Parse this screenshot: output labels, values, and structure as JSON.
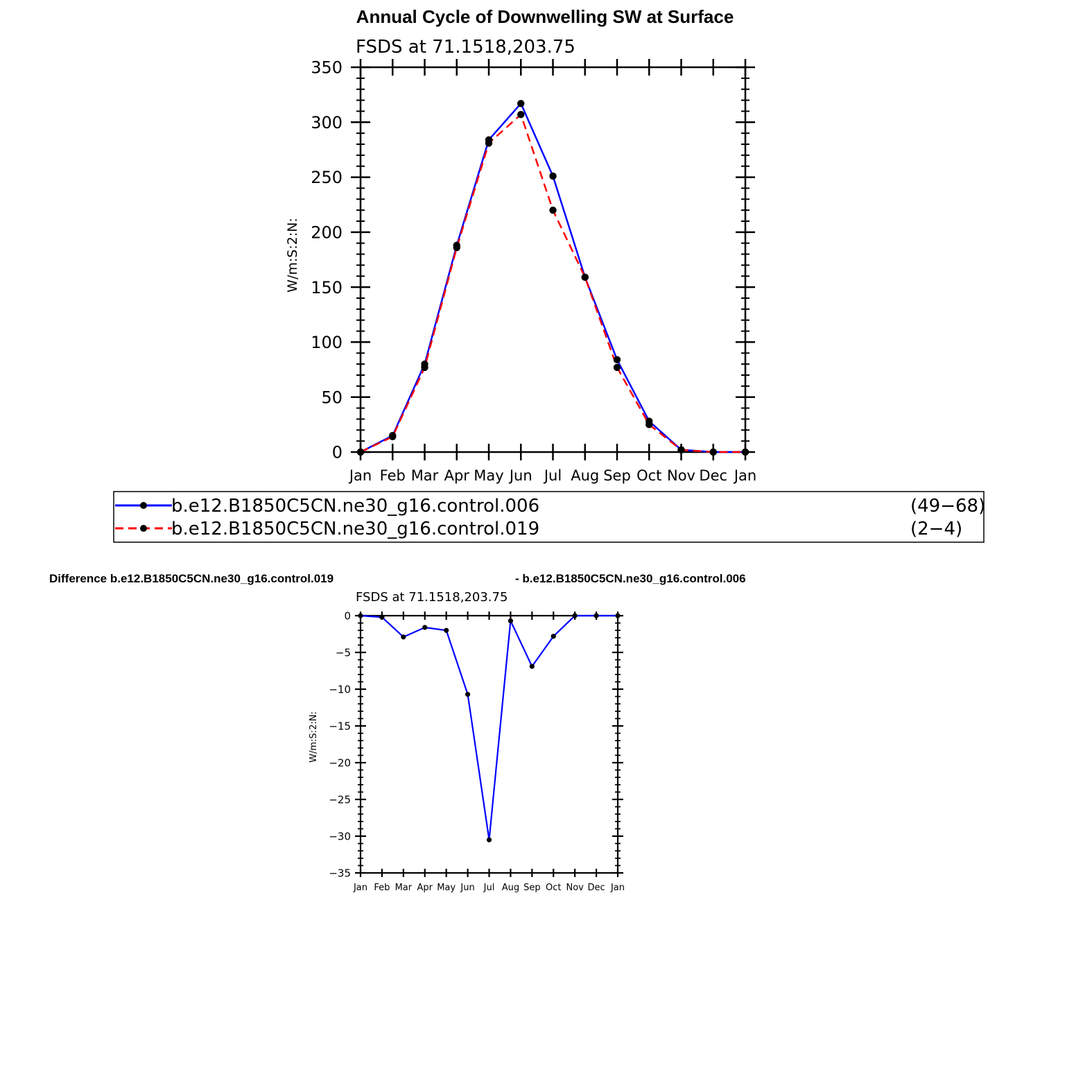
{
  "chart_data": [
    {
      "type": "line",
      "title": "Annual Cycle of Downwelling SW at Surface",
      "subtitle": "FSDS  at  71.1518,203.75",
      "ylabel": "W/m:S:2:N:",
      "xlabel": "",
      "ylim": [
        0,
        350
      ],
      "yticks": [
        0,
        50,
        100,
        150,
        200,
        250,
        300,
        350
      ],
      "categories": [
        "Jan",
        "Feb",
        "Mar",
        "Apr",
        "May",
        "Jun",
        "Jul",
        "Aug",
        "Sep",
        "Oct",
        "Nov",
        "Dec",
        "Jan"
      ],
      "series": [
        {
          "name": "b.e12.B1850C5CN.ne30_g16.control.006",
          "years": "(49−68)",
          "color": "#0000ff",
          "dash": "solid",
          "values": [
            0,
            15,
            80,
            188,
            284,
            317,
            251,
            159,
            84,
            28,
            2,
            0,
            0
          ]
        },
        {
          "name": "b.e12.B1850C5CN.ne30_g16.control.019",
          "years": "(2−4)",
          "color": "#ff0000",
          "dash": "dashed",
          "values": [
            0,
            14,
            77,
            186,
            281,
            307,
            220,
            159,
            77,
            25,
            2,
            0,
            0
          ]
        }
      ],
      "legend": "below"
    },
    {
      "type": "line",
      "title_left": "Difference b.e12.B1850C5CN.ne30_g16.control.019",
      "title_right": "- b.e12.B1850C5CN.ne30_g16.control.006",
      "subtitle": "FSDS  at  71.1518,203.75",
      "ylabel": "W/m:S:2:N:",
      "ylim": [
        -35,
        0
      ],
      "yticks": [
        0,
        -5,
        -10,
        -15,
        -20,
        -25,
        -30,
        -35
      ],
      "categories": [
        "Jan",
        "Feb",
        "Mar",
        "Apr",
        "May",
        "Jun",
        "Jul",
        "Aug",
        "Sep",
        "Oct",
        "Nov",
        "Dec",
        "Jan"
      ],
      "series": [
        {
          "color": "#0000ff",
          "values": [
            0,
            -0.2,
            -2.9,
            -1.6,
            -2.0,
            -10.7,
            -30.5,
            -0.7,
            -6.9,
            -2.8,
            0,
            0,
            0
          ]
        }
      ]
    }
  ]
}
